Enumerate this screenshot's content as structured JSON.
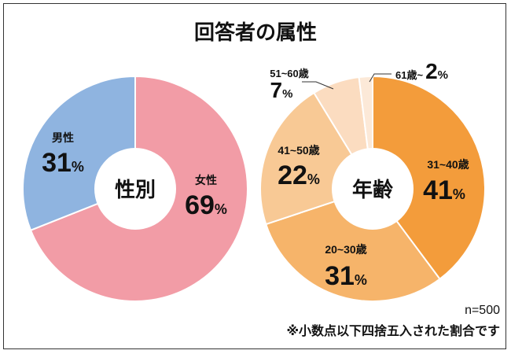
{
  "title": "回答者の属性",
  "chart_data": [
    {
      "type": "pie",
      "center_label": "性別",
      "unit": "%",
      "categories": [
        "女性",
        "男性"
      ],
      "values": [
        69,
        31
      ],
      "colors": [
        "#f29ca6",
        "#8fb4e0"
      ]
    },
    {
      "type": "pie",
      "center_label": "年齢",
      "unit": "%",
      "categories": [
        "31~40歳",
        "20~30歳",
        "41~50歳",
        "51~60歳",
        "61歳~"
      ],
      "values": [
        41,
        31,
        22,
        7,
        2
      ],
      "colors": [
        "#f39c3b",
        "#f6b46a",
        "#f8c995",
        "#fbdcc0",
        "#fce9d8"
      ]
    }
  ],
  "footer": {
    "n": "n=500",
    "note": "※小数点以下四捨五入された割合です"
  }
}
